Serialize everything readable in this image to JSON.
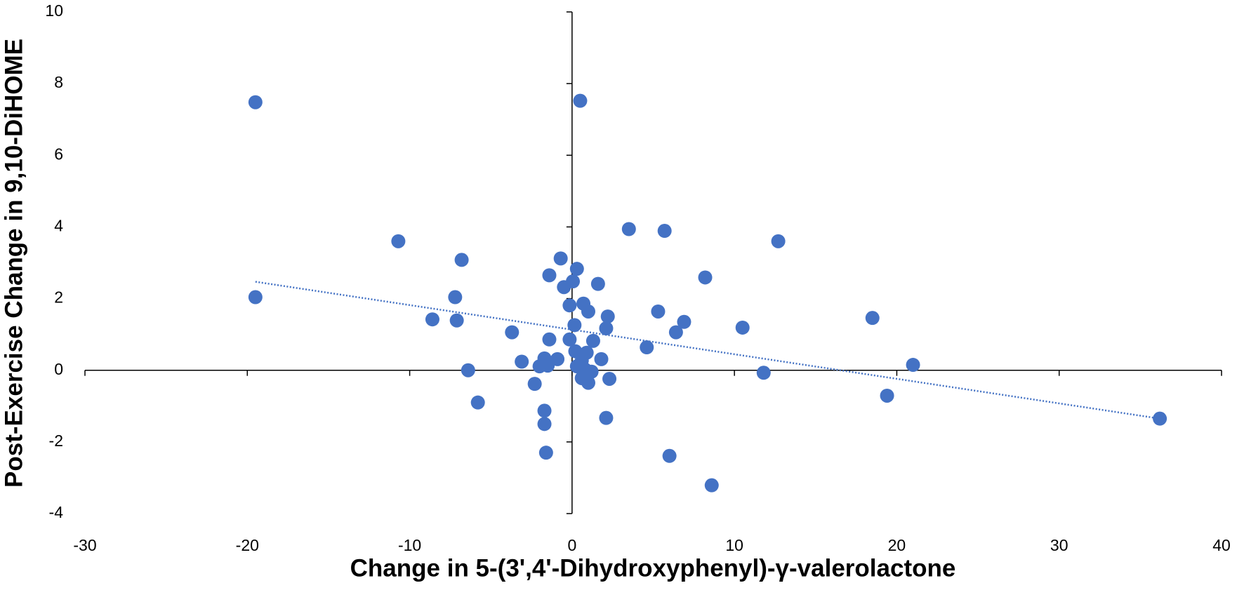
{
  "chart_data": {
    "type": "scatter",
    "x_label": "Change in 5-(3',4'-Dihydroxyphenyl)-γ-valerolactone",
    "y_label": "Post-Exercise Change in 9,10-DiHOME",
    "xlim": [
      -30,
      40
    ],
    "xticks": [
      -30,
      -20,
      -10,
      0,
      10,
      20,
      30,
      40
    ],
    "ylim": [
      -4,
      10
    ],
    "yticks": [
      -4,
      -2,
      0,
      2,
      4,
      6,
      8,
      10
    ],
    "color": "#4472c4",
    "grid": false,
    "x": [
      -19.5,
      0.5,
      -19.5,
      -10.7,
      -6.8,
      -7.2,
      -8.6,
      -7.1,
      -3.7,
      -6.4,
      -5.8,
      -3.1,
      -2.3,
      -2.0,
      -1.7,
      -1.5,
      -1.4,
      -0.9,
      -1.4,
      -0.7,
      -0.5,
      0.05,
      0.3,
      -0.15,
      0.7,
      1.0,
      0.15,
      -0.15,
      0.2,
      0.9,
      0.6,
      1.3,
      0.3,
      0.8,
      1.2,
      0.6,
      1.0,
      1.6,
      1.8,
      2.2,
      2.1,
      2.3,
      2.1,
      -1.7,
      -1.7,
      -1.6,
      3.5,
      5.7,
      4.6,
      5.3,
      6.9,
      6.4,
      8.2,
      6.0,
      8.6,
      10.5,
      12.7,
      11.8,
      18.5,
      19.4,
      21.0,
      36.2
    ],
    "y": [
      7.48,
      7.52,
      2.04,
      3.6,
      3.08,
      2.04,
      1.42,
      1.39,
      1.06,
      0.0,
      -0.9,
      0.24,
      -0.38,
      0.11,
      0.33,
      0.13,
      0.86,
      0.31,
      2.65,
      3.12,
      2.32,
      2.48,
      2.83,
      1.81,
      1.86,
      1.64,
      1.26,
      0.86,
      0.53,
      0.49,
      0.27,
      0.82,
      0.11,
      0.02,
      -0.04,
      -0.22,
      -0.35,
      2.41,
      0.31,
      1.5,
      1.17,
      -0.24,
      -1.33,
      -1.13,
      -1.5,
      -2.3,
      3.94,
      3.89,
      0.64,
      1.64,
      1.35,
      1.06,
      2.59,
      -2.39,
      -3.21,
      1.19,
      3.6,
      -0.07,
      1.46,
      -0.71,
      0.15,
      -1.35
    ],
    "trendline": {
      "x": [
        -19.5,
        36.2
      ],
      "y": [
        2.47,
        -1.35
      ],
      "style": "dotted"
    }
  }
}
